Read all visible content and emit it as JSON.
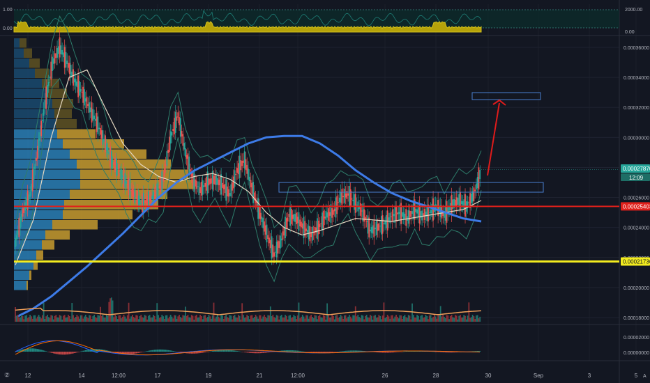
{
  "chart_data": {
    "type": "line",
    "symbol_context": "crypto price chart (hourly candles)",
    "price_axis": {
      "ticks": [
        "0.00036000",
        "0.00034000",
        "0.00032000",
        "0.00030000",
        "0.00028000",
        "0.00026000",
        "0.00024000",
        "0.00022000",
        "0.00020000",
        "0.00018000"
      ],
      "range": [
        0.000174,
        0.000368
      ]
    },
    "tags": {
      "last_price": "0.00027870",
      "countdown": "12:09",
      "red_line": "0.00025403",
      "yellow_line": "0.00021736"
    },
    "levels": {
      "red": 0.00025403,
      "yellow": 0.00021736
    },
    "volume_axis": {
      "ticks": [
        "2000.00",
        "0.00"
      ],
      "left_ticks": [
        "1.00",
        "0.00"
      ]
    },
    "macd_axis": {
      "ticks": [
        "0.00002000",
        "0.00000000"
      ]
    },
    "time_axis": {
      "labels": [
        "12",
        "14",
        "12:00",
        "17",
        "19",
        "21",
        "12:00",
        "26",
        "28",
        "30",
        "Sep",
        "3",
        "5"
      ],
      "label_x": [
        40,
        117,
        170,
        226,
        299,
        372,
        427,
        552,
        625,
        700,
        772,
        845,
        912
      ]
    },
    "series": [
      {
        "name": "price",
        "values": [
          0.00023,
          0.00025,
          0.000262,
          0.00029,
          0.000322,
          0.000349,
          0.00036,
          0.00035,
          0.000338,
          0.00033,
          0.00032,
          0.00031,
          0.000298,
          0.000285,
          0.000278,
          0.00027,
          0.000262,
          0.000256,
          0.000258,
          0.000262,
          0.000272,
          0.0003,
          0.000315,
          0.00029,
          0.000272,
          0.000265,
          0.00027,
          0.000272,
          0.000268,
          0.000262,
          0.000278,
          0.000285,
          0.000266,
          0.00025,
          0.000236,
          0.000222,
          0.000232,
          0.000248,
          0.000246,
          0.00024,
          0.000235,
          0.00024,
          0.000248,
          0.00025,
          0.00026,
          0.000262,
          0.000256,
          0.00025,
          0.000238,
          0.00024,
          0.000243,
          0.000248,
          0.00025,
          0.000246,
          0.000252,
          0.000248,
          0.00025,
          0.000254,
          0.000248,
          0.000255,
          0.000258,
          0.000254,
          0.000262,
          0.000278
        ]
      },
      {
        "name": "ma-blue",
        "values": [
          0.00018,
          0.000186,
          0.000194,
          0.000204,
          0.000214,
          0.000225,
          0.000236,
          0.000248,
          0.00026,
          0.00027,
          0.000278,
          0.000284,
          0.00029,
          0.000296,
          0.0003,
          0.000301,
          0.000301,
          0.000296,
          0.000288,
          0.000278,
          0.00027,
          0.000263,
          0.000258,
          0.000254,
          0.00025,
          0.000246,
          0.000244
        ]
      },
      {
        "name": "ma-white",
        "values": [
          0.000215,
          0.000245,
          0.0003,
          0.00034,
          0.000345,
          0.00032,
          0.000296,
          0.000282,
          0.000274,
          0.00027,
          0.000274,
          0.000276,
          0.000272,
          0.000264,
          0.00025,
          0.00024,
          0.000235,
          0.000238,
          0.000242,
          0.000246,
          0.000245,
          0.000244,
          0.000246,
          0.000248,
          0.00025,
          0.000252,
          0.000258
        ]
      }
    ],
    "volume_profile": {
      "blue": [
        8,
        14,
        22,
        30,
        40,
        48,
        55,
        58,
        60,
        62,
        70,
        80,
        90,
        95,
        95,
        80,
        72,
        70,
        55,
        45,
        40,
        32,
        28,
        22,
        18
      ],
      "gold": [
        10,
        12,
        15,
        20,
        25,
        28,
        30,
        25,
        30,
        55,
        88,
        110,
        135,
        155,
        165,
        140,
        135,
        100,
        65,
        35,
        18,
        10,
        6,
        3,
        2
      ]
    }
  }
}
